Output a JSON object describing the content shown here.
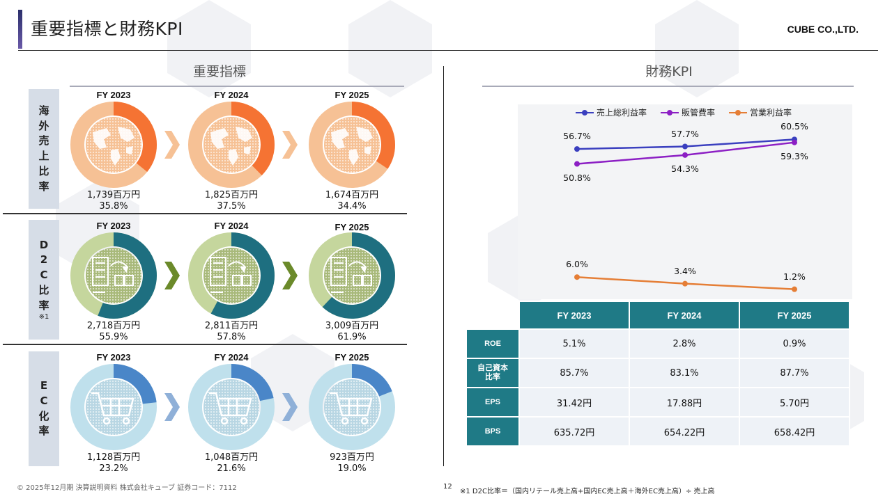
{
  "header": {
    "title": "重要指標と財務KPI",
    "company": "CUBE CO.,LTD."
  },
  "left": {
    "heading": "重要指標",
    "rows": [
      {
        "label_chars": [
          "海",
          "外",
          "売",
          "上",
          "比",
          "率"
        ],
        "note": "",
        "icon": "globe-icon",
        "colors": {
          "track": "#f6c195",
          "fill": "#f57333",
          "inner": "#f6c195"
        },
        "years": [
          {
            "fy": "FY 2023",
            "amount": "1,739百万円",
            "pct": "35.8%",
            "ratio": 0.358
          },
          {
            "fy": "FY 2024",
            "amount": "1,825百万円",
            "pct": "37.5%",
            "ratio": 0.375
          },
          {
            "fy": "FY 2025",
            "amount": "1,674百万円",
            "pct": "34.4%",
            "ratio": 0.344
          }
        ],
        "arrow_color": "#f6c195"
      },
      {
        "label_chars": [
          "D",
          "2",
          "C",
          "比",
          "率"
        ],
        "note": "※1",
        "icon": "store-to-customer-icon",
        "colors": {
          "track": "#c5d69d",
          "fill": "#1e6f80",
          "inner": "#a8b97a"
        },
        "years": [
          {
            "fy": "FY 2023",
            "amount": "2,718百万円",
            "pct": "55.9%",
            "ratio": 0.559
          },
          {
            "fy": "FY 2024",
            "amount": "2,811百万円",
            "pct": "57.8%",
            "ratio": 0.578
          },
          {
            "fy": "FY 2025",
            "amount": "3,009百万円",
            "pct": "61.9%",
            "ratio": 0.619
          }
        ],
        "arrow_color": "#6b8a2a"
      },
      {
        "label_chars": [
          "E",
          "C",
          "化",
          "率"
        ],
        "note": "",
        "icon": "shopping-cart-icon",
        "colors": {
          "track": "#bfe0ec",
          "fill": "#4a86c8",
          "inner": "#b8d6e3"
        },
        "years": [
          {
            "fy": "FY 2023",
            "amount": "1,128百万円",
            "pct": "23.2%",
            "ratio": 0.232
          },
          {
            "fy": "FY 2024",
            "amount": "1,048百万円",
            "pct": "21.6%",
            "ratio": 0.216
          },
          {
            "fy": "FY 2025",
            "amount": "923百万円",
            "pct": "19.0%",
            "ratio": 0.19
          }
        ],
        "arrow_color": "#8fb0d8"
      }
    ]
  },
  "right": {
    "heading": "財務KPI",
    "table": {
      "columns": [
        "FY 2023",
        "FY 2024",
        "FY 2025"
      ],
      "rows": [
        {
          "label": "ROE",
          "values": [
            "5.1%",
            "2.8%",
            "0.9%"
          ]
        },
        {
          "label": "自己資本\n比率",
          "values": [
            "85.7%",
            "83.1%",
            "87.7%"
          ]
        },
        {
          "label": "EPS",
          "values": [
            "31.42円",
            "17.88円",
            "5.70円"
          ]
        },
        {
          "label": "BPS",
          "values": [
            "635.72円",
            "654.22円",
            "658.42円"
          ]
        }
      ]
    }
  },
  "chart_data": {
    "type": "line",
    "x": [
      "FY 2023",
      "FY 2024",
      "FY 2025"
    ],
    "series": [
      {
        "name": "売上総利益率",
        "values": [
          56.7,
          57.7,
          60.5
        ],
        "labels": [
          "56.7%",
          "57.7%",
          "60.5%"
        ],
        "color": "#3a3fbf"
      },
      {
        "name": "販管費率",
        "values": [
          50.8,
          54.3,
          59.3
        ],
        "labels": [
          "50.8%",
          "54.3%",
          "59.3%"
        ],
        "color": "#8c1fc4"
      },
      {
        "name": "営業利益率",
        "values": [
          6.0,
          3.4,
          1.2
        ],
        "labels": [
          "6.0%",
          "3.4%",
          "1.2%"
        ],
        "color": "#e57e36"
      }
    ],
    "legend_position": "top"
  },
  "footer": {
    "left": "© 2025年12月期 決算説明資料 株式会社キューブ 証券コード：7112",
    "page": "12",
    "note": "※1 D2C比率＝（国内リテール売上高+国内EC売上高＋海外EC売上高）÷ 売上高"
  }
}
